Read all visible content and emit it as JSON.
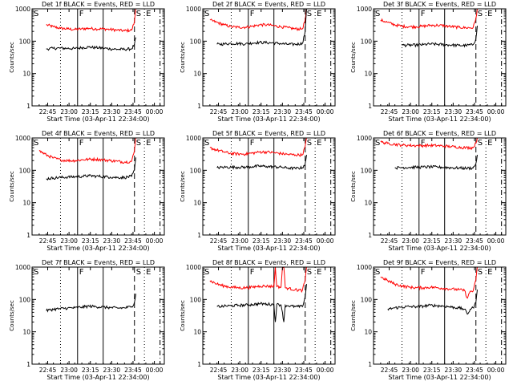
{
  "colors": {
    "events": "#000000",
    "lld": "#ff0000",
    "background": "#ffffff",
    "axis": "#000000"
  },
  "shared": {
    "xlabel": "Start Time (03-Apr-11 22:34:00)",
    "ylabel": "Counts/sec",
    "y_ticks": [
      "1",
      "10",
      "100",
      "1000"
    ],
    "x_ticks": [
      "22:45",
      "23:00",
      "23:15",
      "23:30",
      "23:45",
      "00:00"
    ],
    "x_tick_values_min": [
      11,
      26,
      41,
      56,
      71,
      86
    ],
    "x_range_min": [
      0,
      93
    ],
    "y_range": [
      1,
      1000
    ],
    "y_scale": "log",
    "markers": [
      {
        "label": "S",
        "t_min": 0,
        "style": "dashed"
      },
      {
        "label": "F",
        "t_min": 32,
        "style": "solid"
      },
      {
        "label": "S",
        "t_min": 72,
        "style": "dashed"
      },
      {
        "label": "E",
        "t_min": 79,
        "style": "dotted"
      }
    ],
    "extra_lines": [
      {
        "t_min": 20,
        "style": "dotted"
      },
      {
        "t_min": 50,
        "style": "solid"
      },
      {
        "t_min": 90,
        "style": "dashdot"
      }
    ]
  },
  "chart_data": [
    {
      "type": "line",
      "title": "Det 1f BLACK = Events, RED = LLD",
      "series": [
        {
          "x": [
            0,
            5,
            10,
            15,
            20,
            25,
            30,
            35,
            40,
            45,
            50,
            55,
            60,
            65,
            70,
            72,
            73
          ],
          "values": [
            null,
            null,
            320,
            280,
            250,
            240,
            230,
            240,
            250,
            240,
            240,
            230,
            220,
            210,
            220,
            400,
            1000
          ]
        },
        {
          "x": [
            0,
            5,
            10,
            15,
            20,
            25,
            30,
            35,
            40,
            45,
            50,
            55,
            60,
            65,
            70,
            72,
            73
          ],
          "values": [
            null,
            null,
            58,
            60,
            61,
            60,
            59,
            63,
            66,
            63,
            61,
            58,
            56,
            56,
            58,
            80,
            130
          ]
        }
      ]
    },
    {
      "type": "line",
      "title": "Det 2f BLACK = Events, RED = LLD",
      "series": [
        {
          "x": [
            0,
            5,
            10,
            15,
            20,
            25,
            30,
            35,
            40,
            45,
            50,
            55,
            60,
            65,
            70,
            72,
            73
          ],
          "values": [
            null,
            450,
            380,
            320,
            280,
            270,
            270,
            290,
            320,
            320,
            300,
            280,
            260,
            240,
            240,
            450,
            1000
          ]
        },
        {
          "x": [
            0,
            5,
            10,
            15,
            20,
            25,
            30,
            35,
            40,
            45,
            50,
            55,
            60,
            65,
            70,
            72,
            73
          ],
          "values": [
            null,
            null,
            80,
            82,
            85,
            85,
            82,
            88,
            92,
            90,
            88,
            84,
            80,
            80,
            85,
            200,
            1000
          ]
        }
      ]
    },
    {
      "type": "line",
      "title": "Det 3f BLACK = Events, RED = LLD",
      "series": [
        {
          "x": [
            0,
            5,
            10,
            15,
            20,
            25,
            30,
            35,
            40,
            45,
            50,
            55,
            60,
            65,
            70,
            72,
            73
          ],
          "values": [
            null,
            450,
            380,
            320,
            290,
            280,
            280,
            290,
            310,
            310,
            300,
            280,
            270,
            260,
            260,
            500,
            1000
          ]
        },
        {
          "x": [
            0,
            5,
            10,
            15,
            20,
            25,
            30,
            35,
            40,
            45,
            50,
            55,
            60,
            65,
            70,
            72,
            73
          ],
          "values": [
            null,
            null,
            null,
            null,
            75,
            75,
            76,
            78,
            82,
            80,
            78,
            76,
            74,
            74,
            78,
            120,
            300
          ]
        }
      ]
    },
    {
      "type": "line",
      "title": "Det 4f BLACK = Events, RED = LLD",
      "series": [
        {
          "x": [
            0,
            5,
            10,
            15,
            20,
            25,
            30,
            35,
            40,
            45,
            50,
            55,
            60,
            65,
            70,
            72,
            73
          ],
          "values": [
            null,
            400,
            300,
            240,
            210,
            200,
            200,
            210,
            220,
            220,
            210,
            200,
            190,
            180,
            190,
            400,
            1000
          ]
        },
        {
          "x": [
            0,
            5,
            10,
            15,
            20,
            25,
            30,
            35,
            40,
            45,
            50,
            55,
            60,
            65,
            70,
            72,
            73
          ],
          "values": [
            null,
            null,
            55,
            58,
            60,
            62,
            63,
            65,
            68,
            66,
            64,
            62,
            60,
            60,
            65,
            100,
            250
          ]
        }
      ]
    },
    {
      "type": "line",
      "title": "Det 5f BLACK = Events, RED = LLD",
      "series": [
        {
          "x": [
            0,
            5,
            10,
            15,
            20,
            25,
            30,
            35,
            40,
            45,
            50,
            55,
            60,
            65,
            70,
            72,
            73
          ],
          "values": [
            null,
            500,
            420,
            370,
            330,
            320,
            320,
            340,
            370,
            370,
            350,
            330,
            310,
            300,
            300,
            550,
            1000
          ]
        },
        {
          "x": [
            0,
            5,
            10,
            15,
            20,
            25,
            30,
            35,
            40,
            45,
            50,
            55,
            60,
            65,
            70,
            72,
            73
          ],
          "values": [
            null,
            null,
            120,
            125,
            125,
            125,
            125,
            130,
            135,
            132,
            128,
            125,
            118,
            115,
            120,
            160,
            300
          ]
        }
      ]
    },
    {
      "type": "line",
      "title": "Det 6f BLACK = Events, RED = LLD",
      "series": [
        {
          "x": [
            0,
            5,
            10,
            15,
            20,
            25,
            30,
            35,
            40,
            45,
            50,
            55,
            60,
            65,
            70,
            72,
            73
          ],
          "values": [
            null,
            750,
            680,
            640,
            600,
            590,
            580,
            580,
            590,
            580,
            560,
            540,
            520,
            500,
            500,
            700,
            1000
          ]
        },
        {
          "x": [
            0,
            5,
            10,
            15,
            20,
            25,
            30,
            35,
            40,
            45,
            50,
            55,
            60,
            65,
            70,
            72,
            73
          ],
          "values": [
            null,
            null,
            null,
            120,
            122,
            124,
            125,
            126,
            128,
            126,
            124,
            120,
            118,
            116,
            118,
            160,
            300
          ]
        }
      ]
    },
    {
      "type": "line",
      "title": "Det 7f BLACK = Events, RED = LLD",
      "series": [
        {
          "x": [
            0,
            5,
            10,
            15,
            20,
            25,
            30,
            35,
            40,
            45,
            50,
            55,
            60,
            65,
            70,
            72,
            73
          ],
          "values": [
            null,
            null,
            null,
            null,
            null,
            null,
            null,
            null,
            null,
            null,
            null,
            null,
            null,
            null,
            null,
            null,
            null
          ]
        },
        {
          "x": [
            0,
            5,
            10,
            15,
            20,
            25,
            30,
            35,
            40,
            45,
            50,
            55,
            60,
            65,
            70,
            72,
            73
          ],
          "values": [
            null,
            null,
            45,
            50,
            52,
            54,
            55,
            58,
            62,
            60,
            58,
            56,
            54,
            55,
            60,
            80,
            150
          ]
        }
      ]
    },
    {
      "type": "line",
      "title": "Det 8f BLACK = Events, RED = LLD",
      "series": [
        {
          "x": [
            0,
            5,
            10,
            15,
            20,
            25,
            30,
            35,
            40,
            45,
            50,
            51,
            52,
            55,
            56,
            57,
            58,
            60,
            65,
            70,
            72,
            73
          ],
          "values": [
            null,
            380,
            300,
            260,
            240,
            230,
            230,
            240,
            260,
            260,
            250,
            1000,
            250,
            240,
            1000,
            1000,
            230,
            220,
            200,
            190,
            400,
            1000
          ]
        },
        {
          "x": [
            0,
            5,
            10,
            15,
            20,
            25,
            30,
            35,
            40,
            45,
            50,
            51,
            52,
            55,
            56,
            57,
            58,
            60,
            65,
            70,
            72,
            73
          ],
          "values": [
            null,
            null,
            60,
            62,
            64,
            66,
            67,
            70,
            74,
            72,
            70,
            20,
            70,
            68,
            40,
            20,
            66,
            64,
            60,
            60,
            120,
            300
          ]
        }
      ]
    },
    {
      "type": "line",
      "title": "Det 9f BLACK = Events, RED = LLD",
      "series": [
        {
          "x": [
            0,
            5,
            10,
            15,
            20,
            25,
            30,
            35,
            40,
            45,
            50,
            55,
            60,
            64,
            66,
            68,
            70,
            72,
            73
          ],
          "values": [
            null,
            500,
            380,
            300,
            260,
            240,
            230,
            230,
            240,
            230,
            220,
            210,
            200,
            190,
            110,
            180,
            180,
            400,
            1000
          ]
        },
        {
          "x": [
            0,
            5,
            10,
            15,
            20,
            25,
            30,
            35,
            40,
            45,
            50,
            55,
            60,
            64,
            66,
            68,
            70,
            72,
            73
          ],
          "values": [
            null,
            null,
            50,
            55,
            58,
            60,
            60,
            62,
            66,
            64,
            62,
            58,
            55,
            50,
            35,
            50,
            55,
            80,
            200
          ]
        }
      ]
    }
  ]
}
